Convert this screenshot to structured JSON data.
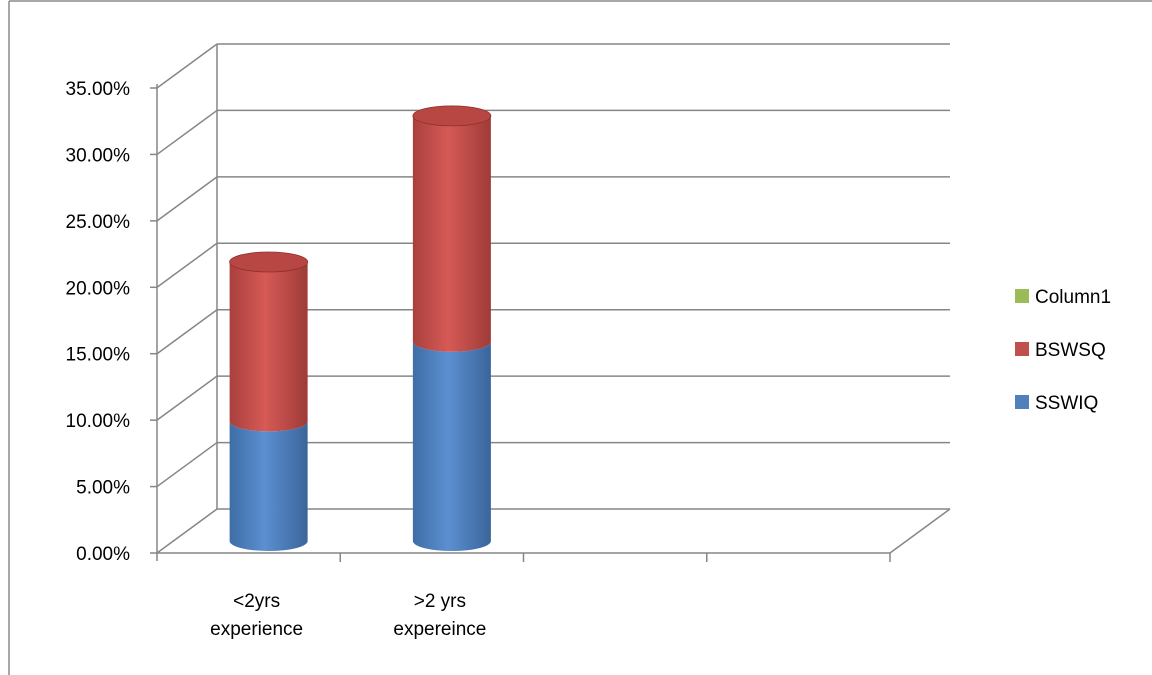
{
  "chart_data": {
    "type": "bar",
    "stacked": true,
    "style": "3d-cylinder",
    "categories": [
      [
        "<2yrs",
        "experience"
      ],
      [
        ">2 yrs",
        "expereince"
      ]
    ],
    "series": [
      {
        "name": "SSWIQ",
        "color": "#4F81BD",
        "values": [
          0.09,
          0.15
        ]
      },
      {
        "name": "BSWSQ",
        "color": "#C0504D",
        "values": [
          0.12,
          0.17
        ]
      },
      {
        "name": "Column1",
        "color": "#9BBB59",
        "values": [
          0,
          0
        ]
      }
    ],
    "legend_order": [
      "Column1",
      "BSWSQ",
      "SSWIQ"
    ],
    "yticks": [
      "0.00%",
      "5.00%",
      "10.00%",
      "15.00%",
      "20.00%",
      "25.00%",
      "30.00%",
      "35.00%"
    ],
    "ylim": [
      0,
      0.35
    ],
    "grid": true,
    "legend_position": "right",
    "title": "",
    "xlabel": "",
    "ylabel": ""
  }
}
